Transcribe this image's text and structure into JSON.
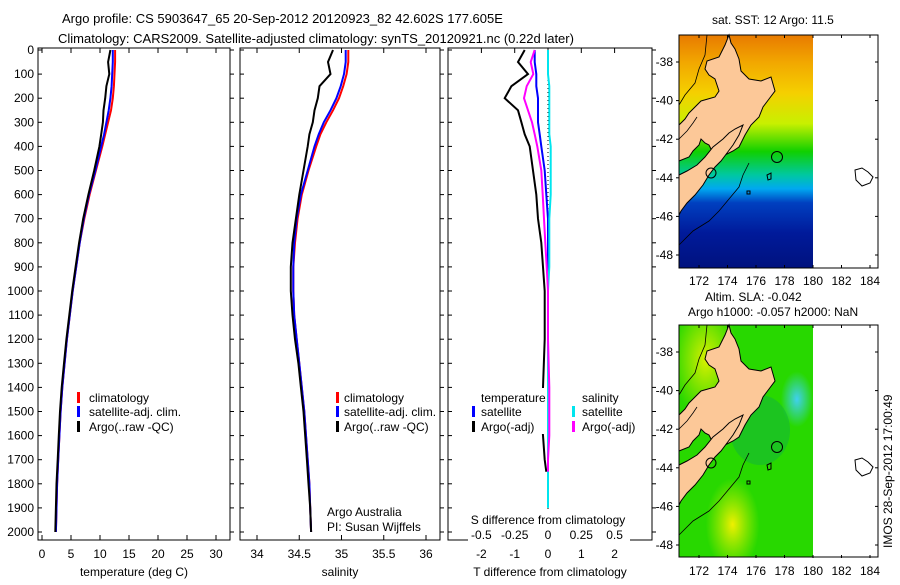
{
  "header": {
    "line1": "Argo profile: CS 5903647_65 20-Sep-2012 20120923_82 42.602S 177.605E",
    "line2": "Climatology: CARS2009. Satellite-adjusted climatology: synTS_20120921.nc (0.22d later)"
  },
  "colors": {
    "climatology": "#ff0000",
    "satellite": "#0000ff",
    "argo": "#000000",
    "sal_satellite": "#00e5ee",
    "sal_argo": "#ff00ff"
  },
  "chart_data": [
    {
      "type": "line",
      "id": "temperature",
      "xlabel": "temperature (deg C)",
      "ylabel": "",
      "xlim": [
        0,
        31
      ],
      "ylim": [
        2000,
        0
      ],
      "xticks": [
        "0",
        "5",
        "10",
        "15",
        "20",
        "25",
        "30"
      ],
      "xtick_values": [
        0,
        5,
        10,
        15,
        20,
        25,
        30
      ],
      "yticks": [
        "0",
        "100",
        "200",
        "300",
        "400",
        "500",
        "600",
        "700",
        "800",
        "900",
        "1000",
        "1100",
        "1200",
        "1300",
        "1400",
        "1500",
        "1600",
        "1700",
        "1800",
        "1900",
        "2000"
      ],
      "legend": {
        "placement": "lower-center",
        "items": [
          "climatology",
          "satellite-adj. clim.",
          "Argo(..raw -QC)"
        ]
      },
      "depth": [
        0,
        50,
        100,
        150,
        200,
        250,
        300,
        350,
        400,
        500,
        600,
        700,
        800,
        900,
        1000,
        1100,
        1200,
        1300,
        1400,
        1500,
        1600,
        1700,
        1800,
        1900,
        2000
      ],
      "series": [
        {
          "name": "climatology",
          "values": [
            12.6,
            12.6,
            12.5,
            12.4,
            12.2,
            11.9,
            11.4,
            10.9,
            10.4,
            9.3,
            8.2,
            7.3,
            6.5,
            5.9,
            5.3,
            4.8,
            4.3,
            3.9,
            3.5,
            3.2,
            3.0,
            2.8,
            2.6,
            2.5,
            2.4
          ]
        },
        {
          "name": "satellite-adj. clim.",
          "values": [
            12.2,
            12.2,
            12.1,
            12.0,
            11.8,
            11.5,
            11.1,
            10.7,
            10.2,
            9.2,
            8.1,
            7.2,
            6.5,
            5.9,
            5.3,
            4.8,
            4.3,
            3.9,
            3.5,
            3.2,
            3.0,
            2.8,
            2.6,
            2.5,
            2.4
          ]
        },
        {
          "name": "Argo(..raw -QC)",
          "values": [
            11.8,
            11.4,
            11.6,
            11.1,
            10.9,
            10.6,
            10.5,
            10.2,
            9.9,
            9.0,
            8.0,
            7.1,
            6.4,
            5.8,
            5.2,
            4.7,
            4.2,
            3.8,
            3.4,
            3.1,
            2.9,
            2.7,
            2.5,
            2.4,
            2.3
          ]
        }
      ]
    },
    {
      "type": "line",
      "id": "salinity",
      "xlabel": "salinity",
      "xlim": [
        33.8,
        36.1
      ],
      "ylim": [
        2000,
        0
      ],
      "xticks": [
        "34",
        "34.5",
        "35",
        "35.5",
        "36"
      ],
      "xtick_values": [
        34,
        34.5,
        35,
        35.5,
        36
      ],
      "legend": {
        "placement": "lower-right",
        "items": [
          "climatology",
          "satellite-adj. clim.",
          "Argo(..raw -QC)"
        ]
      },
      "annotations": [
        "Argo Australia",
        "PI: Susan Wijffels"
      ],
      "depth": [
        0,
        50,
        100,
        150,
        200,
        250,
        300,
        350,
        400,
        500,
        600,
        700,
        800,
        900,
        1000,
        1100,
        1200,
        1300,
        1400,
        1500,
        1600,
        1700,
        1800,
        1900,
        2000
      ],
      "series": [
        {
          "name": "climatology",
          "values": [
            35.08,
            35.08,
            35.06,
            35.02,
            34.97,
            34.9,
            34.82,
            34.75,
            34.7,
            34.61,
            34.53,
            34.48,
            34.45,
            34.43,
            34.43,
            34.44,
            34.47,
            34.5,
            34.53,
            34.56,
            34.58,
            34.6,
            34.62,
            34.63,
            34.64
          ]
        },
        {
          "name": "satellite-adj. clim.",
          "values": [
            35.05,
            35.05,
            35.03,
            34.99,
            34.94,
            34.87,
            34.79,
            34.73,
            34.68,
            34.6,
            34.52,
            34.47,
            34.44,
            34.43,
            34.43,
            34.44,
            34.47,
            34.5,
            34.53,
            34.56,
            34.58,
            34.6,
            34.62,
            34.63,
            34.64
          ]
        },
        {
          "name": "Argo(..raw -QC)",
          "values": [
            34.9,
            34.84,
            34.87,
            34.74,
            34.72,
            34.68,
            34.66,
            34.62,
            34.6,
            34.55,
            34.5,
            34.46,
            34.42,
            34.4,
            34.4,
            34.42,
            34.45,
            34.49,
            34.52,
            34.55,
            34.57,
            34.59,
            34.61,
            34.63,
            34.64
          ]
        }
      ]
    },
    {
      "type": "line",
      "id": "difference",
      "xlabel": "T difference from climatology",
      "xlabel_top": "S difference from climatology",
      "xlim": [
        -3,
        3
      ],
      "ylim": [
        2000,
        0
      ],
      "xticks": [
        "-2",
        "-1",
        "0",
        "1",
        "2"
      ],
      "xtick_values": [
        -2,
        -1,
        0,
        1,
        2
      ],
      "xticks_s": [
        "-0.5",
        "-0.25",
        "0",
        "0.25",
        "0.5"
      ],
      "xtick_values_s": [
        -0.5,
        -0.25,
        0,
        0.25,
        0.5
      ],
      "legend": {
        "placement": "lower-center",
        "temperature_title": "temperature",
        "salinity_title": "salinity",
        "items": [
          "satellite",
          "Argo(-adj)",
          "satellite",
          "Argo(-adj)"
        ]
      },
      "depth": [
        0,
        50,
        100,
        150,
        200,
        250,
        300,
        350,
        400,
        500,
        600,
        700,
        800,
        900,
        1000,
        1200,
        1400,
        1500,
        1600,
        1700,
        1750
      ],
      "series": [
        {
          "name": "T satellite",
          "values": [
            -0.4,
            -0.4,
            -0.35,
            -0.35,
            -0.3,
            -0.3,
            -0.3,
            -0.25,
            -0.2,
            -0.1,
            -0.05,
            0,
            0,
            0,
            0,
            0,
            0,
            0,
            0,
            0,
            0
          ]
        },
        {
          "name": "T Argo(-adj)",
          "values": [
            -0.7,
            -0.9,
            -0.6,
            -1.1,
            -1.3,
            -0.9,
            -0.8,
            -0.7,
            -0.55,
            -0.45,
            -0.35,
            -0.3,
            -0.2,
            -0.15,
            -0.1,
            -0.1,
            -0.15,
            -0.2,
            -0.15,
            -0.1,
            -0.05
          ]
        },
        {
          "name": "S satellite",
          "values": [
            0.0,
            0.0,
            0.0,
            0.01,
            0.01,
            0.01,
            0.01,
            0.01,
            0.02,
            0.02,
            0.02,
            0.01,
            0.01,
            0.01,
            0.0,
            0.0,
            0.0,
            0.0,
            0.0,
            0.0,
            0.0
          ]
        },
        {
          "name": "S Argo(-adj)",
          "values": [
            -0.1,
            -0.13,
            -0.11,
            -0.16,
            -0.18,
            -0.15,
            -0.12,
            -0.1,
            -0.08,
            -0.05,
            -0.04,
            -0.03,
            -0.02,
            -0.01,
            0.0,
            0.0,
            0.01,
            0.01,
            0.01,
            0.0,
            0.0
          ]
        }
      ]
    }
  ],
  "maps": [
    {
      "title": "sat. SST: 12 Argo: 11.5",
      "xticks": [
        "172",
        "174",
        "176",
        "178",
        "180",
        "182",
        "184"
      ],
      "yticks": [
        "-38",
        "-40",
        "-42",
        "-44",
        "-46",
        "-48"
      ]
    },
    {
      "title1": "Altim. SLA: -0.042",
      "title2": "Argo h1000: -0.057 h2000: NaN",
      "xticks": [
        "172",
        "174",
        "176",
        "178",
        "180",
        "182",
        "184"
      ],
      "yticks": [
        "-38",
        "-40",
        "-42",
        "-44",
        "-46",
        "-48"
      ]
    }
  ],
  "footer": {
    "stamp": "IMOS 28-Sep-2012 17:00:49"
  }
}
